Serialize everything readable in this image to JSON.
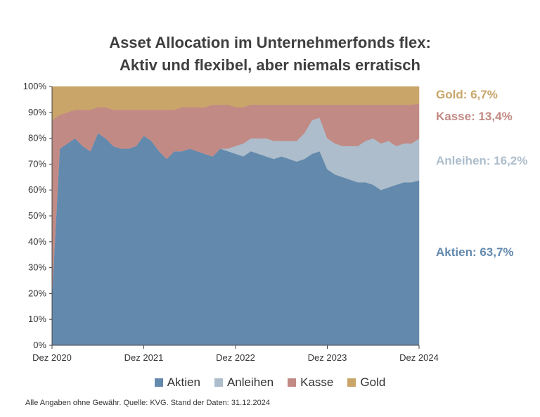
{
  "title_line1": "Asset Allocation im Unternehmerfonds flex:",
  "title_line2": "Aktiv und flexibel, aber niemals erratisch",
  "footnote": "Alle Angaben ohne Gewähr. Quelle: KVG. Stand der Daten: 31.12.2024",
  "colors": {
    "Aktien": "#6389ad",
    "Anleihen": "#adbdcb",
    "Kasse": "#c28a84",
    "Gold": "#c9a56a"
  },
  "chart_data": {
    "type": "area",
    "stacked": true,
    "xlabel": "",
    "ylabel": "",
    "ylim": [
      0,
      100
    ],
    "y_ticks": [
      "0%",
      "10%",
      "20%",
      "30%",
      "40%",
      "50%",
      "60%",
      "70%",
      "80%",
      "90%",
      "100%"
    ],
    "x_ticks": [
      "Dez 2020",
      "Dez 2021",
      "Dez 2022",
      "Dez 2023",
      "Dez 2024"
    ],
    "legend_position": "bottom",
    "x": [
      "2020-12",
      "2021-01",
      "2021-02",
      "2021-03",
      "2021-04",
      "2021-05",
      "2021-06",
      "2021-07",
      "2021-08",
      "2021-09",
      "2021-10",
      "2021-11",
      "2021-12",
      "2022-01",
      "2022-02",
      "2022-03",
      "2022-04",
      "2022-05",
      "2022-06",
      "2022-07",
      "2022-08",
      "2022-09",
      "2022-10",
      "2022-11",
      "2022-12",
      "2023-01",
      "2023-02",
      "2023-03",
      "2023-04",
      "2023-05",
      "2023-06",
      "2023-07",
      "2023-08",
      "2023-09",
      "2023-10",
      "2023-11",
      "2023-12",
      "2024-01",
      "2024-02",
      "2024-03",
      "2024-04",
      "2024-05",
      "2024-06",
      "2024-07",
      "2024-08",
      "2024-09",
      "2024-10",
      "2024-11",
      "2024-12"
    ],
    "series": [
      {
        "name": "Aktien",
        "values": [
          20,
          76,
          78,
          80,
          77,
          75,
          82,
          80,
          77,
          76,
          76,
          77,
          81,
          79,
          75,
          72,
          75,
          75,
          76,
          75,
          74,
          73,
          76,
          75,
          74,
          73,
          75,
          74,
          73,
          72,
          73,
          72,
          71,
          72,
          74,
          75,
          68,
          66,
          65,
          64,
          63,
          63,
          62,
          60,
          61,
          62,
          63,
          63,
          63.7
        ]
      },
      {
        "name": "Anleihen",
        "values": [
          0,
          0,
          0,
          0,
          0,
          0,
          0,
          0,
          0,
          0,
          0,
          0,
          0,
          0,
          0,
          0,
          0,
          0,
          0,
          0,
          0,
          0,
          0,
          1,
          3,
          5,
          5,
          6,
          7,
          7,
          6,
          7,
          8,
          10,
          13,
          13,
          12,
          12,
          12,
          13,
          14,
          16,
          18,
          18,
          18,
          15,
          15,
          15,
          16.2
        ]
      },
      {
        "name": "Kasse",
        "values": [
          67,
          13,
          12,
          11,
          14,
          16,
          10,
          12,
          14,
          15,
          15,
          14,
          10,
          12,
          16,
          19,
          16,
          17,
          16,
          17,
          18,
          20,
          17,
          17,
          15,
          14,
          13,
          13,
          13,
          14,
          14,
          14,
          14,
          11,
          6,
          5,
          13,
          15,
          16,
          16,
          16,
          14,
          13,
          15,
          14,
          16,
          15,
          15,
          13.4
        ]
      },
      {
        "name": "Gold",
        "values": [
          13,
          11,
          10,
          9,
          9,
          9,
          8,
          8,
          9,
          9,
          9,
          9,
          9,
          9,
          9,
          9,
          9,
          8,
          8,
          8,
          8,
          7,
          7,
          7,
          8,
          8,
          7,
          7,
          7,
          7,
          7,
          7,
          7,
          7,
          7,
          7,
          7,
          7,
          7,
          7,
          7,
          7,
          7,
          7,
          7,
          7,
          7,
          7,
          6.7
        ]
      }
    ],
    "end_labels": [
      {
        "series": "Gold",
        "text": "Gold: 6,7%"
      },
      {
        "series": "Kasse",
        "text": "Kasse: 13,4%"
      },
      {
        "series": "Anleihen",
        "text": "Anleihen: 16,2%"
      },
      {
        "series": "Aktien",
        "text": "Aktien: 63,7%"
      }
    ]
  }
}
